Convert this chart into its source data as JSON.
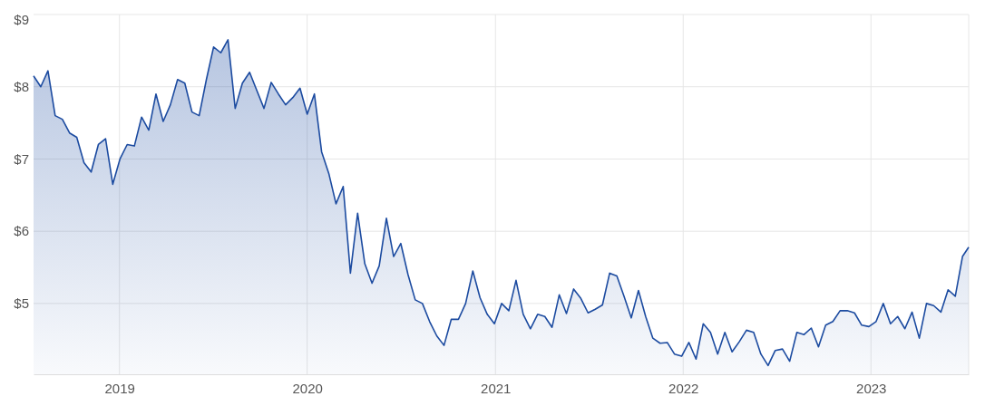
{
  "chart_data": {
    "type": "area",
    "grid": true,
    "xlim": [
      "2018-07-18",
      "2023-07-10"
    ],
    "xticks": [
      {
        "value": "2019-01-01",
        "label": "2019"
      },
      {
        "value": "2020-01-01",
        "label": "2020"
      },
      {
        "value": "2021-01-01",
        "label": "2021"
      },
      {
        "value": "2022-01-01",
        "label": "2022"
      },
      {
        "value": "2023-01-01",
        "label": "2023"
      }
    ],
    "ylim": [
      4.02,
      9
    ],
    "yticks": [
      {
        "value": 5,
        "label": "$5"
      },
      {
        "value": 6,
        "label": "$6"
      },
      {
        "value": 7,
        "label": "$7"
      },
      {
        "value": 8,
        "label": "$8"
      },
      {
        "value": 9,
        "label": "$9"
      }
    ],
    "x": [
      "2018-07-18",
      "2018-08-01",
      "2018-08-15",
      "2018-08-29",
      "2018-09-12",
      "2018-09-26",
      "2018-10-10",
      "2018-10-24",
      "2018-11-07",
      "2018-11-21",
      "2018-12-05",
      "2018-12-19",
      "2019-01-02",
      "2019-01-16",
      "2019-01-30",
      "2019-02-13",
      "2019-02-27",
      "2019-03-13",
      "2019-03-27",
      "2019-04-10",
      "2019-04-24",
      "2019-05-08",
      "2019-05-22",
      "2019-06-05",
      "2019-06-19",
      "2019-07-03",
      "2019-07-17",
      "2019-07-31",
      "2019-08-14",
      "2019-08-28",
      "2019-09-11",
      "2019-09-25",
      "2019-10-09",
      "2019-10-23",
      "2019-11-06",
      "2019-11-20",
      "2019-12-04",
      "2019-12-18",
      "2020-01-01",
      "2020-01-15",
      "2020-01-29",
      "2020-02-12",
      "2020-02-26",
      "2020-03-11",
      "2020-03-25",
      "2020-04-08",
      "2020-04-22",
      "2020-05-06",
      "2020-05-20",
      "2020-06-03",
      "2020-06-17",
      "2020-07-01",
      "2020-07-15",
      "2020-07-29",
      "2020-08-12",
      "2020-08-26",
      "2020-09-09",
      "2020-09-23",
      "2020-10-07",
      "2020-10-21",
      "2020-11-04",
      "2020-11-18",
      "2020-12-02",
      "2020-12-16",
      "2020-12-30",
      "2021-01-13",
      "2021-01-27",
      "2021-02-10",
      "2021-02-24",
      "2021-03-10",
      "2021-03-24",
      "2021-04-07",
      "2021-04-21",
      "2021-05-05",
      "2021-05-19",
      "2021-06-02",
      "2021-06-16",
      "2021-06-30",
      "2021-07-14",
      "2021-07-28",
      "2021-08-11",
      "2021-08-25",
      "2021-09-08",
      "2021-09-22",
      "2021-10-06",
      "2021-10-20",
      "2021-11-03",
      "2021-11-17",
      "2021-12-01",
      "2021-12-15",
      "2021-12-29",
      "2022-01-12",
      "2022-01-26",
      "2022-02-09",
      "2022-02-23",
      "2022-03-09",
      "2022-03-23",
      "2022-04-06",
      "2022-04-20",
      "2022-05-04",
      "2022-05-18",
      "2022-06-01",
      "2022-06-15",
      "2022-06-29",
      "2022-07-13",
      "2022-07-27",
      "2022-08-10",
      "2022-08-24",
      "2022-09-07",
      "2022-09-21",
      "2022-10-05",
      "2022-10-19",
      "2022-11-02",
      "2022-11-16",
      "2022-11-30",
      "2022-12-14",
      "2022-12-28",
      "2023-01-11",
      "2023-01-25",
      "2023-02-08",
      "2023-02-22",
      "2023-03-08",
      "2023-03-22",
      "2023-04-05",
      "2023-04-19",
      "2023-05-03",
      "2023-05-17",
      "2023-05-31",
      "2023-06-14",
      "2023-06-28",
      "2023-07-10"
    ],
    "series": [
      {
        "color": "#1c4ba0",
        "values": [
          8.15,
          8.0,
          8.22,
          7.6,
          7.55,
          7.36,
          7.3,
          6.95,
          6.82,
          7.2,
          7.28,
          6.65,
          7.0,
          7.2,
          7.18,
          7.58,
          7.4,
          7.9,
          7.52,
          7.75,
          8.1,
          8.05,
          7.65,
          7.6,
          8.1,
          8.55,
          8.47,
          8.65,
          7.7,
          8.05,
          8.2,
          7.95,
          7.7,
          8.06,
          7.9,
          7.75,
          7.85,
          7.98,
          7.62,
          7.9,
          7.1,
          6.8,
          6.38,
          6.62,
          5.42,
          6.25,
          5.55,
          5.28,
          5.52,
          6.18,
          5.65,
          5.83,
          5.4,
          5.05,
          5.0,
          4.75,
          4.55,
          4.42,
          4.78,
          4.78,
          5.0,
          5.45,
          5.08,
          4.85,
          4.72,
          5.0,
          4.9,
          5.32,
          4.85,
          4.65,
          4.85,
          4.82,
          4.67,
          5.12,
          4.86,
          5.2,
          5.07,
          4.87,
          4.92,
          4.98,
          5.42,
          5.38,
          5.1,
          4.8,
          5.18,
          4.82,
          4.52,
          4.45,
          4.46,
          4.3,
          4.27,
          4.46,
          4.23,
          4.72,
          4.6,
          4.3,
          4.6,
          4.33,
          4.47,
          4.63,
          4.6,
          4.3,
          4.14,
          4.35,
          4.37,
          4.2,
          4.6,
          4.57,
          4.66,
          4.4,
          4.7,
          4.75,
          4.9,
          4.9,
          4.87,
          4.7,
          4.68,
          4.75,
          5.0,
          4.72,
          4.82,
          4.65,
          4.88,
          4.52,
          5.0,
          4.97,
          4.88,
          5.19,
          5.1,
          5.65,
          5.78
        ]
      }
    ]
  }
}
